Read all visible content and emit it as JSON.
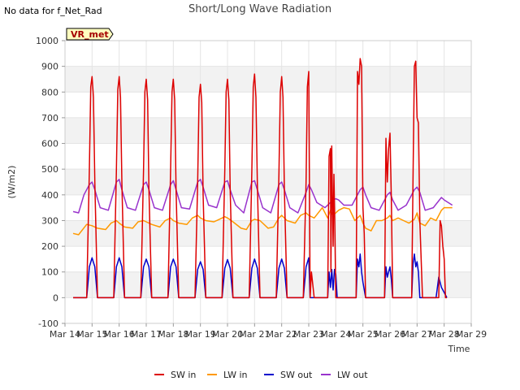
{
  "notice": "No data for f_Net_Rad",
  "chart_data": {
    "type": "line",
    "title": "Short/Long Wave Radiation",
    "xlabel": "Time",
    "ylabel": "(W/m2)",
    "badge": "VR_met",
    "xlim": [
      14,
      29
    ],
    "ylim": [
      -100,
      1000
    ],
    "yticks": [
      -100,
      0,
      100,
      200,
      300,
      400,
      500,
      600,
      700,
      800,
      900,
      1000
    ],
    "xticks": [
      {
        "x": 14,
        "label": "Mar 14"
      },
      {
        "x": 15,
        "label": "Mar 15"
      },
      {
        "x": 16,
        "label": "Mar 16"
      },
      {
        "x": 17,
        "label": "Mar 17"
      },
      {
        "x": 18,
        "label": "Mar 18"
      },
      {
        "x": 19,
        "label": "Mar 19"
      },
      {
        "x": 20,
        "label": "Mar 20"
      },
      {
        "x": 21,
        "label": "Mar 21"
      },
      {
        "x": 22,
        "label": "Mar 22"
      },
      {
        "x": 23,
        "label": "Mar 23"
      },
      {
        "x": 24,
        "label": "Mar 24"
      },
      {
        "x": 25,
        "label": "Mar 25"
      },
      {
        "x": 26,
        "label": "Mar 26"
      },
      {
        "x": 27,
        "label": "Mar 27"
      },
      {
        "x": 28,
        "label": "Mar 28"
      },
      {
        "x": 29,
        "label": "Mar 29"
      }
    ],
    "grid": true,
    "legend_position": "bottom",
    "series": [
      {
        "name": "SW in",
        "color": "#dd0000",
        "x": [
          14.3,
          14.8,
          14.9,
          14.95,
          15.0,
          15.05,
          15.1,
          15.2,
          15.3,
          15.8,
          15.9,
          15.95,
          16.0,
          16.05,
          16.1,
          16.2,
          16.3,
          16.8,
          16.9,
          16.95,
          17.0,
          17.05,
          17.1,
          17.2,
          17.3,
          17.8,
          17.9,
          17.95,
          18.0,
          18.05,
          18.1,
          18.2,
          18.3,
          18.8,
          18.9,
          18.95,
          19.0,
          19.05,
          19.1,
          19.2,
          19.3,
          19.8,
          19.9,
          19.95,
          20.0,
          20.05,
          20.1,
          20.2,
          20.3,
          20.8,
          20.9,
          20.95,
          21.0,
          21.05,
          21.1,
          21.2,
          21.3,
          21.8,
          21.9,
          21.95,
          22.0,
          22.05,
          22.1,
          22.2,
          22.3,
          22.8,
          22.9,
          22.95,
          23.0,
          23.05,
          23.1,
          23.2,
          23.3,
          23.7,
          23.75,
          23.8,
          23.82,
          23.85,
          23.9,
          23.93,
          23.96,
          24.0,
          24.05,
          24.1,
          24.2,
          24.3,
          24.75,
          24.8,
          24.85,
          24.9,
          24.95,
          25.0,
          25.05,
          25.1,
          25.2,
          25.3,
          25.8,
          25.85,
          25.9,
          25.95,
          26.0,
          26.05,
          26.1,
          26.2,
          26.3,
          26.8,
          26.85,
          26.9,
          26.95,
          27.0,
          27.05,
          27.1,
          27.2,
          27.3,
          27.7,
          27.8,
          27.85,
          27.9,
          27.95,
          28.0,
          28.05,
          28.1
        ],
        "y": [
          0,
          0,
          500,
          820,
          860,
          780,
          450,
          0,
          0,
          0,
          500,
          810,
          860,
          780,
          450,
          0,
          0,
          0,
          500,
          800,
          850,
          770,
          420,
          0,
          0,
          0,
          500,
          800,
          850,
          770,
          420,
          0,
          0,
          0,
          450,
          780,
          830,
          760,
          400,
          0,
          0,
          0,
          500,
          800,
          850,
          770,
          420,
          0,
          0,
          0,
          500,
          820,
          870,
          780,
          450,
          0,
          0,
          0,
          480,
          800,
          860,
          780,
          420,
          0,
          0,
          0,
          450,
          820,
          880,
          0,
          100,
          0,
          0,
          0,
          550,
          580,
          100,
          590,
          200,
          480,
          300,
          0,
          0,
          0,
          0,
          0,
          0,
          880,
          830,
          930,
          900,
          350,
          250,
          0,
          0,
          0,
          0,
          620,
          450,
          580,
          640,
          380,
          0,
          0,
          0,
          0,
          450,
          900,
          920,
          700,
          680,
          300,
          0,
          0,
          0,
          0,
          300,
          280,
          200,
          150,
          0,
          0
        ]
      },
      {
        "name": "LW in",
        "color": "#ff9900",
        "x": [
          14.3,
          14.5,
          14.8,
          15.0,
          15.2,
          15.5,
          15.7,
          15.9,
          16.0,
          16.2,
          16.5,
          16.7,
          16.9,
          17.0,
          17.2,
          17.5,
          17.7,
          17.9,
          18.0,
          18.2,
          18.5,
          18.7,
          18.9,
          19.0,
          19.2,
          19.5,
          19.7,
          19.9,
          20.0,
          20.2,
          20.5,
          20.7,
          20.9,
          21.0,
          21.2,
          21.5,
          21.7,
          21.9,
          22.0,
          22.2,
          22.5,
          22.7,
          22.9,
          23.0,
          23.2,
          23.5,
          23.7,
          23.8,
          23.9,
          24.0,
          24.1,
          24.3,
          24.5,
          24.7,
          24.9,
          25.0,
          25.1,
          25.3,
          25.5,
          25.7,
          25.9,
          26.0,
          26.1,
          26.3,
          26.5,
          26.7,
          26.9,
          27.0,
          27.1,
          27.3,
          27.5,
          27.7,
          27.9,
          28.0,
          28.3
        ],
        "y": [
          250,
          245,
          285,
          280,
          270,
          265,
          290,
          300,
          290,
          275,
          270,
          295,
          300,
          295,
          285,
          275,
          300,
          310,
          300,
          290,
          285,
          310,
          320,
          310,
          300,
          295,
          305,
          315,
          310,
          295,
          270,
          265,
          300,
          305,
          300,
          270,
          275,
          310,
          320,
          300,
          290,
          320,
          330,
          320,
          310,
          350,
          310,
          340,
          320,
          330,
          340,
          350,
          345,
          300,
          320,
          290,
          270,
          260,
          300,
          300,
          310,
          320,
          300,
          310,
          300,
          290,
          305,
          330,
          290,
          280,
          310,
          300,
          340,
          350,
          350
        ]
      },
      {
        "name": "SW out",
        "color": "#0000cc",
        "x": [
          14.3,
          14.8,
          14.9,
          15.0,
          15.1,
          15.2,
          15.3,
          15.8,
          15.9,
          16.0,
          16.1,
          16.2,
          16.3,
          16.8,
          16.9,
          17.0,
          17.1,
          17.2,
          17.3,
          17.8,
          17.9,
          18.0,
          18.1,
          18.2,
          18.3,
          18.8,
          18.9,
          19.0,
          19.1,
          19.2,
          19.3,
          19.8,
          19.9,
          20.0,
          20.1,
          20.2,
          20.3,
          20.8,
          20.9,
          21.0,
          21.1,
          21.2,
          21.3,
          21.8,
          21.9,
          22.0,
          22.1,
          22.2,
          22.3,
          22.8,
          22.9,
          23.0,
          23.05,
          23.1,
          23.3,
          23.7,
          23.75,
          23.8,
          23.85,
          23.9,
          23.95,
          24.0,
          24.05,
          24.1,
          24.3,
          24.75,
          24.8,
          24.85,
          24.9,
          24.95,
          25.0,
          25.1,
          25.3,
          25.8,
          25.85,
          25.9,
          25.95,
          26.0,
          26.05,
          26.1,
          26.3,
          26.8,
          26.85,
          26.9,
          26.95,
          27.0,
          27.05,
          27.1,
          27.3,
          27.7,
          27.8,
          27.9,
          28.0,
          28.1
        ],
        "y": [
          0,
          0,
          120,
          155,
          120,
          0,
          0,
          0,
          120,
          155,
          120,
          0,
          0,
          0,
          120,
          150,
          120,
          0,
          0,
          0,
          120,
          150,
          120,
          0,
          0,
          0,
          110,
          140,
          110,
          0,
          0,
          0,
          115,
          148,
          115,
          0,
          0,
          0,
          115,
          150,
          115,
          0,
          0,
          0,
          115,
          150,
          115,
          0,
          0,
          0,
          120,
          155,
          0,
          0,
          0,
          0,
          100,
          40,
          110,
          30,
          110,
          90,
          0,
          0,
          0,
          0,
          150,
          120,
          170,
          100,
          60,
          0,
          0,
          0,
          120,
          80,
          100,
          120,
          70,
          0,
          0,
          0,
          130,
          170,
          120,
          140,
          100,
          0,
          0,
          0,
          80,
          40,
          20,
          0
        ]
      },
      {
        "name": "LW out",
        "color": "#9933cc",
        "x": [
          14.3,
          14.5,
          14.7,
          14.9,
          15.0,
          15.1,
          15.3,
          15.6,
          15.9,
          16.0,
          16.1,
          16.3,
          16.6,
          16.9,
          17.0,
          17.1,
          17.3,
          17.6,
          17.9,
          18.0,
          18.1,
          18.3,
          18.6,
          18.9,
          19.0,
          19.1,
          19.3,
          19.6,
          19.9,
          20.0,
          20.1,
          20.3,
          20.6,
          20.9,
          21.0,
          21.1,
          21.3,
          21.6,
          21.9,
          22.0,
          22.1,
          22.3,
          22.6,
          22.9,
          23.0,
          23.1,
          23.3,
          23.6,
          23.9,
          24.0,
          24.1,
          24.3,
          24.6,
          24.9,
          25.0,
          25.1,
          25.3,
          25.6,
          25.9,
          26.0,
          26.1,
          26.3,
          26.6,
          26.9,
          27.0,
          27.1,
          27.3,
          27.6,
          27.9,
          28.0,
          28.3
        ],
        "y": [
          335,
          330,
          400,
          440,
          450,
          420,
          350,
          340,
          450,
          460,
          420,
          350,
          340,
          440,
          450,
          420,
          350,
          340,
          440,
          455,
          420,
          350,
          345,
          450,
          460,
          430,
          360,
          350,
          450,
          455,
          420,
          360,
          330,
          450,
          455,
          420,
          350,
          330,
          440,
          450,
          420,
          350,
          330,
          410,
          440,
          420,
          370,
          350,
          380,
          385,
          380,
          360,
          360,
          420,
          430,
          400,
          350,
          340,
          400,
          410,
          380,
          340,
          360,
          420,
          430,
          410,
          340,
          350,
          390,
          380,
          360
        ]
      }
    ]
  }
}
